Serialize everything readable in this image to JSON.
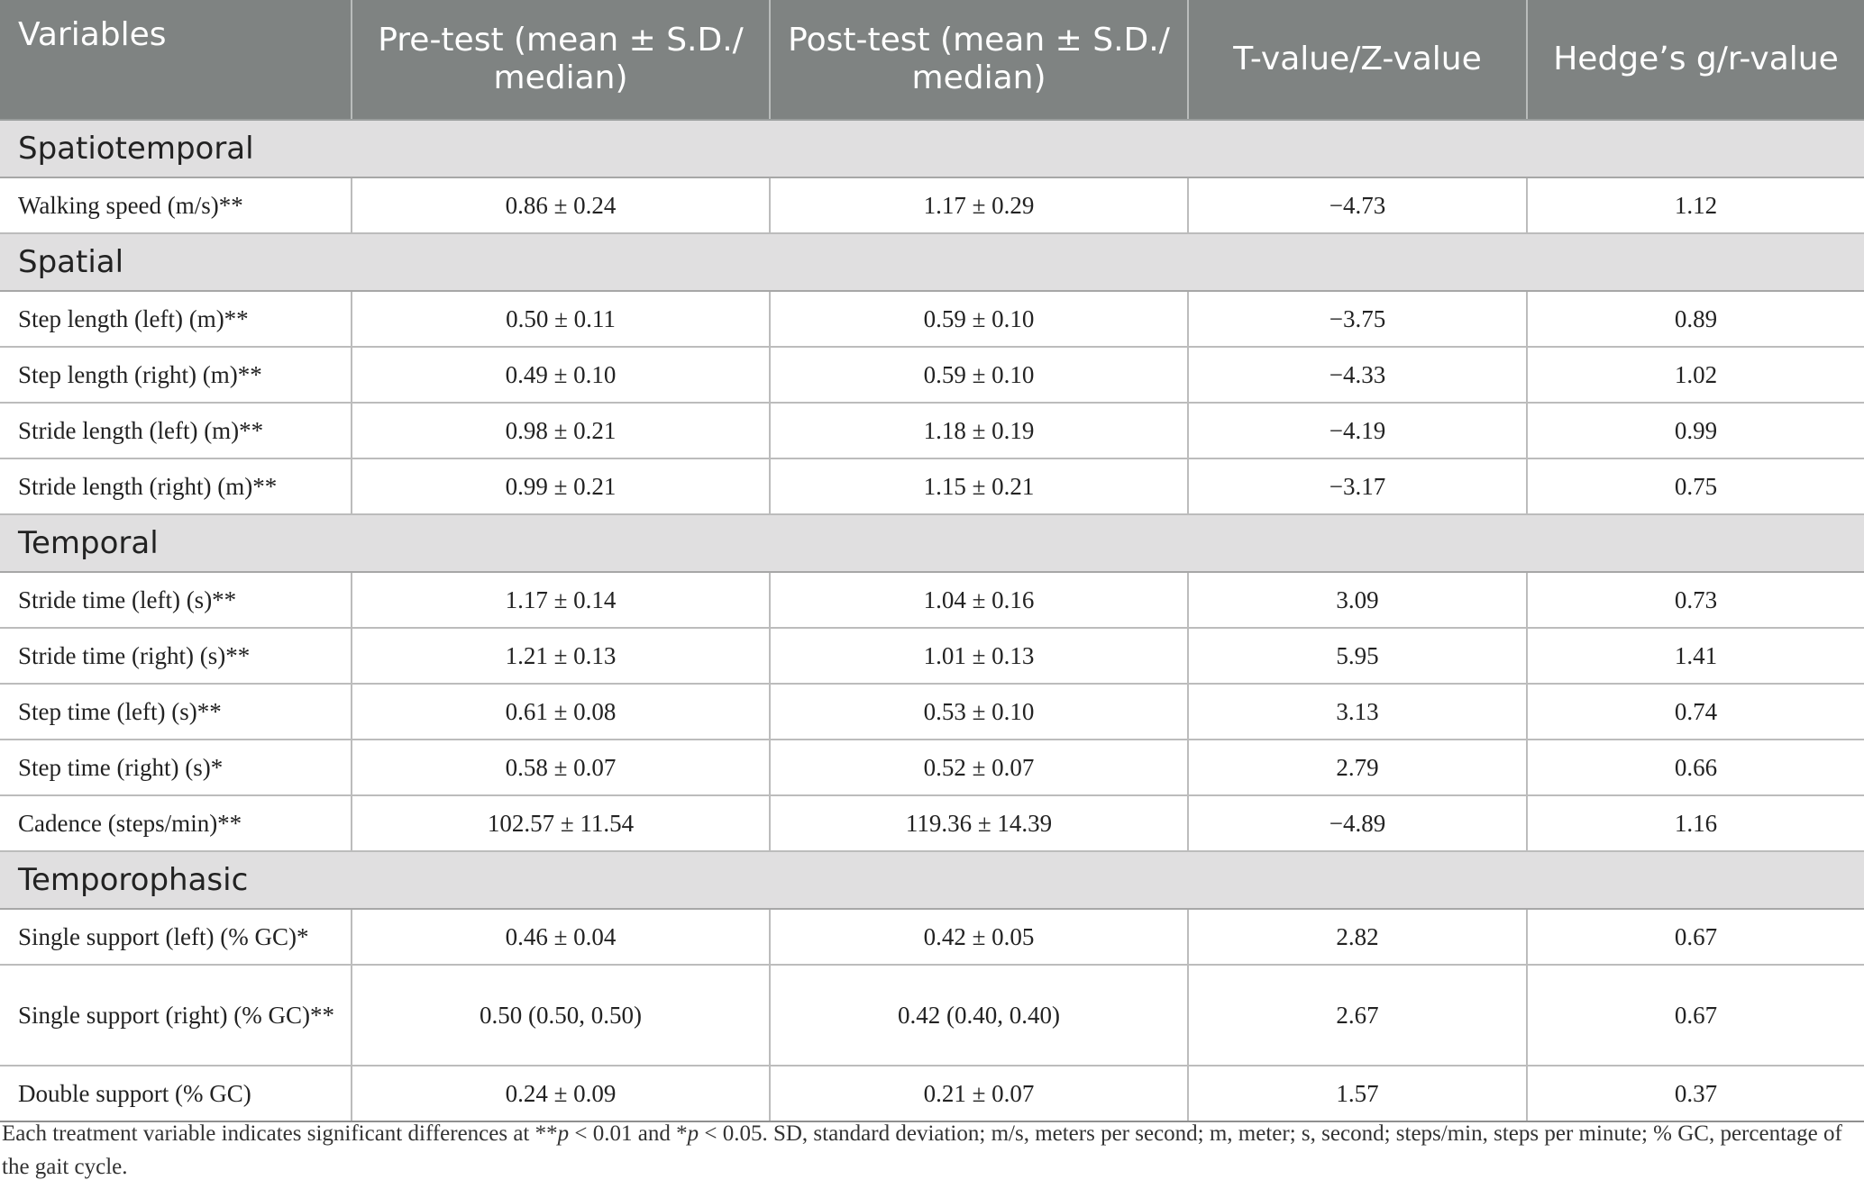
{
  "table": {
    "headers": [
      "Variables",
      "Pre-test (mean ± S.D./ median)",
      "Post-test (mean ± S.D./ median)",
      "T-value/Z-value",
      "Hedge’s g/r-value"
    ],
    "sections": [
      {
        "title": "Spatiotemporal",
        "rows": [
          {
            "variable": "Walking speed (m/s)**",
            "pre": "0.86 ± 0.24",
            "post": "1.17 ± 0.29",
            "t": "−4.73",
            "g": "1.12"
          }
        ]
      },
      {
        "title": "Spatial",
        "rows": [
          {
            "variable": "Step length (left) (m)**",
            "pre": "0.50 ± 0.11",
            "post": "0.59 ± 0.10",
            "t": "−3.75",
            "g": "0.89"
          },
          {
            "variable": "Step length (right) (m)**",
            "pre": "0.49 ± 0.10",
            "post": "0.59 ± 0.10",
            "t": "−4.33",
            "g": "1.02"
          },
          {
            "variable": "Stride length (left) (m)**",
            "pre": "0.98 ± 0.21",
            "post": "1.18 ± 0.19",
            "t": "−4.19",
            "g": "0.99"
          },
          {
            "variable": "Stride length (right) (m)**",
            "pre": "0.99 ± 0.21",
            "post": "1.15 ± 0.21",
            "t": "−3.17",
            "g": "0.75"
          }
        ]
      },
      {
        "title": "Temporal",
        "rows": [
          {
            "variable": "Stride time (left) (s)**",
            "pre": "1.17 ± 0.14",
            "post": "1.04 ± 0.16",
            "t": "3.09",
            "g": "0.73"
          },
          {
            "variable": "Stride time (right) (s)**",
            "pre": "1.21 ± 0.13",
            "post": "1.01 ± 0.13",
            "t": "5.95",
            "g": "1.41"
          },
          {
            "variable": "Step time (left) (s)**",
            "pre": "0.61 ± 0.08",
            "post": "0.53 ± 0.10",
            "t": "3.13",
            "g": "0.74"
          },
          {
            "variable": "Step time (right) (s)*",
            "pre": "0.58 ± 0.07",
            "post": "0.52 ± 0.07",
            "t": "2.79",
            "g": "0.66"
          },
          {
            "variable": "Cadence (steps/min)**",
            "pre": "102.57 ± 11.54",
            "post": "119.36 ± 14.39",
            "t": "−4.89",
            "g": "1.16"
          }
        ]
      },
      {
        "title": "Temporophasic",
        "rows": [
          {
            "variable": "Single support (left) (% GC)*",
            "pre": "0.46 ± 0.04",
            "post": "0.42 ± 0.05",
            "t": "2.82",
            "g": "0.67"
          },
          {
            "variable": "Single support (right) (% GC)**",
            "pre": "0.50 (0.50, 0.50)",
            "post": "0.42 (0.40, 0.40)",
            "t": "2.67",
            "g": "0.67"
          },
          {
            "variable": "Double support (% GC)",
            "pre": "0.24 ± 0.09",
            "post": "0.21 ± 0.07",
            "t": "1.57",
            "g": "0.37"
          }
        ]
      }
    ]
  },
  "footnote": {
    "part1": "Each treatment variable indicates significant differences at **",
    "p1": "p",
    "part2": " < 0.01 and *",
    "p2": "p",
    "part3": " < 0.05. SD, standard deviation; m/s, meters per second; m, meter; s, second; steps/min, steps per minute; % GC, percentage of the gait cycle."
  }
}
